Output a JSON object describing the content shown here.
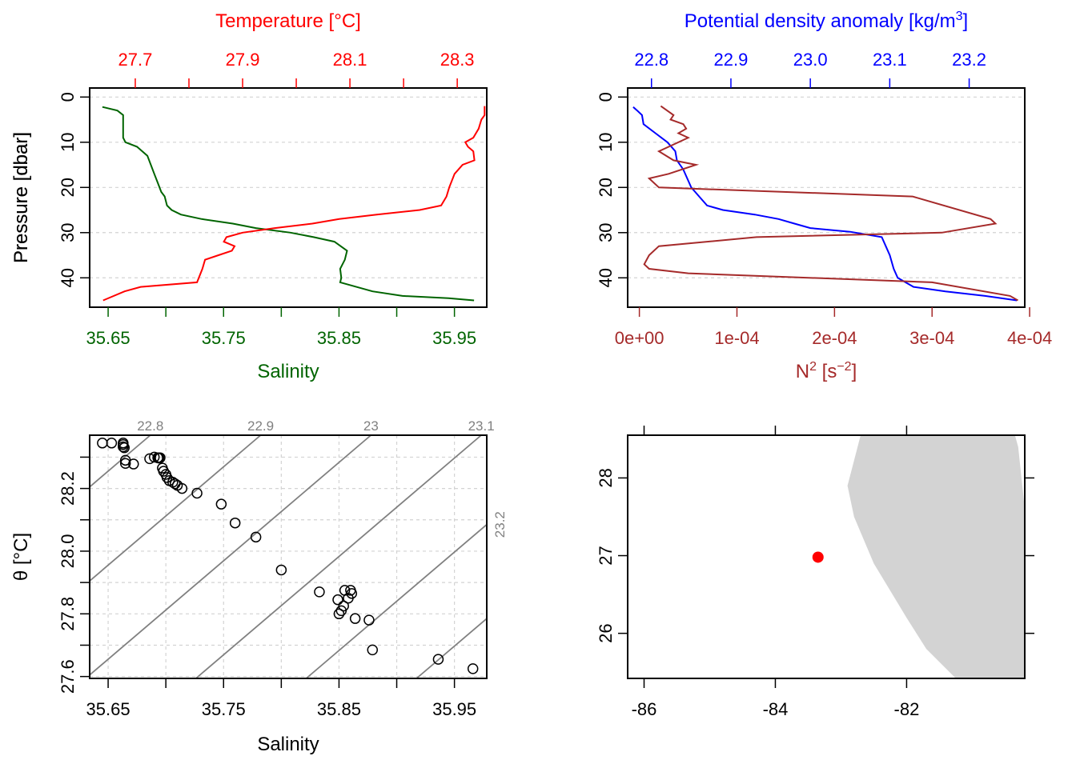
{
  "chart_data": [
    {
      "type": "line",
      "panel": "salinity-temperature-profile",
      "top_axis": {
        "label": "Temperature [°C]",
        "ticks": [
          27.7,
          27.8,
          27.9,
          28.0,
          28.1,
          28.2,
          28.3
        ],
        "tick_labels": [
          "27.7",
          "",
          "27.9",
          "",
          "28.1",
          "",
          "28.3"
        ],
        "lim": [
          27.615,
          28.355
        ],
        "color": "#ff0000"
      },
      "bottom_axis": {
        "label": "Salinity",
        "ticks": [
          35.65,
          35.7,
          35.75,
          35.8,
          35.85,
          35.9,
          35.95
        ],
        "tick_labels": [
          "35.65",
          "",
          "35.75",
          "",
          "35.85",
          "",
          "35.95"
        ],
        "lim": [
          35.634,
          35.978
        ],
        "color": "#006400"
      },
      "y_axis": {
        "label": "Pressure [dbar]",
        "ticks": [
          0,
          10,
          20,
          30,
          40
        ],
        "tick_labels": [
          "0",
          "10",
          "20",
          "30",
          "40"
        ],
        "lim": [
          -2,
          46.5
        ],
        "reversed": true
      },
      "grid": true,
      "series": [
        {
          "name": "Salinity",
          "axis": "bottom",
          "color": "#006400",
          "x": [
            35.645,
            35.658,
            35.663,
            35.663,
            35.663,
            35.665,
            35.675,
            35.684,
            35.687,
            35.69,
            35.693,
            35.696,
            35.699,
            35.701,
            35.705,
            35.713,
            35.731,
            35.758,
            35.778,
            35.808,
            35.828,
            35.846,
            35.857,
            35.855,
            35.851,
            35.852,
            35.851,
            35.865,
            35.879,
            35.905,
            35.945,
            35.967
          ],
          "y": [
            2.2,
            3,
            4,
            6,
            9,
            10,
            11,
            13,
            15,
            17,
            19,
            21,
            22,
            24,
            25,
            26,
            27,
            28,
            29,
            30,
            31,
            32,
            34,
            36,
            38,
            40,
            41,
            42,
            43,
            44,
            44.5,
            45
          ]
        },
        {
          "name": "Temperature",
          "axis": "top",
          "color": "#ff0000",
          "x": [
            28.351,
            28.351,
            28.345,
            28.34,
            28.33,
            28.315,
            28.32,
            28.33,
            28.332,
            28.31,
            28.295,
            28.285,
            28.28,
            28.27,
            28.23,
            28.15,
            28.08,
            28.03,
            27.96,
            27.9,
            27.87,
            27.865,
            27.885,
            27.88,
            27.855,
            27.83,
            27.825,
            27.815,
            27.71,
            27.68,
            27.64
          ],
          "y": [
            2,
            4,
            5,
            7,
            9,
            10,
            11,
            12,
            14,
            15,
            17,
            20,
            22,
            24,
            25,
            26,
            27,
            28,
            29,
            30,
            31,
            32,
            33,
            34,
            35,
            36,
            38,
            41,
            42,
            43,
            45
          ]
        }
      ]
    },
    {
      "type": "line",
      "panel": "density-n2-profile",
      "top_axis": {
        "label": "Potential density anomaly [kg/m³]",
        "ticks": [
          22.8,
          22.9,
          23.0,
          23.1,
          23.2
        ],
        "tick_labels": [
          "22.8",
          "22.9",
          "23.0",
          "23.1",
          "23.2"
        ],
        "lim": [
          22.77,
          23.27
        ],
        "color": "#0000ff"
      },
      "bottom_axis": {
        "label": "N² [s⁻²]",
        "ticks": [
          0,
          0.0001,
          0.0002,
          0.0003,
          0.0004
        ],
        "tick_labels": [
          "0e+00",
          "1e-04",
          "2e-04",
          "3e-04",
          "4e-04"
        ],
        "lim": [
          -1.2e-05,
          0.000395
        ],
        "color": "#a52a2a"
      },
      "y_axis": {
        "label": "Pressure [dbar]",
        "ticks": [
          0,
          10,
          20,
          30,
          40
        ],
        "tick_labels": [
          "0",
          "10",
          "20",
          "30",
          "40"
        ],
        "lim": [
          -2,
          46.5
        ],
        "reversed": true
      },
      "grid": true,
      "series": [
        {
          "name": "Potential density anomaly",
          "axis": "top",
          "color": "#0000ff",
          "x": [
            22.777,
            22.782,
            22.788,
            22.79,
            22.805,
            22.82,
            22.825,
            22.83,
            22.832,
            22.84,
            22.845,
            22.85,
            22.855,
            22.86,
            22.87,
            22.89,
            22.93,
            22.96,
            22.98,
            23.0,
            23.05,
            23.09,
            23.095,
            23.1,
            23.105,
            23.11,
            23.13,
            23.17,
            23.22,
            23.26
          ],
          "y": [
            2.2,
            3,
            4,
            6,
            8,
            10,
            11,
            12,
            14,
            16,
            18,
            20,
            21,
            22,
            24,
            25,
            26,
            27,
            28,
            29,
            29.8,
            31,
            33,
            35,
            38,
            40,
            42,
            43,
            44,
            45
          ]
        },
        {
          "name": "N²",
          "axis": "bottom",
          "color": "#a52a2a",
          "x": [
            2.2e-05,
            3.5e-05,
            3.2e-05,
            4.5e-05,
            4.8e-05,
            4e-05,
            5e-05,
            2e-05,
            3.5e-05,
            5.8e-05,
            3e-05,
            1e-05,
            2e-05,
            0.00028,
            0.00036,
            0.000365,
            0.00031,
            0.00012,
            2e-05,
            1e-05,
            5e-06,
            1e-05,
            5e-05,
            0.0003,
            0.00038,
            0.000388
          ],
          "y": [
            2,
            4,
            5,
            6,
            7,
            8,
            9,
            12,
            14,
            15,
            17,
            18,
            20,
            22,
            27,
            28,
            30,
            31,
            33,
            35,
            37,
            38,
            39,
            41,
            44,
            45
          ]
        }
      ]
    },
    {
      "type": "scatter",
      "panel": "ts-diagram",
      "x_axis": {
        "label": "Salinity",
        "ticks": [
          35.65,
          35.7,
          35.75,
          35.8,
          35.85,
          35.9,
          35.95
        ],
        "tick_labels": [
          "35.65",
          "",
          "35.75",
          "",
          "35.85",
          "",
          "35.95"
        ],
        "lim": [
          35.634,
          35.978
        ]
      },
      "y_axis": {
        "label": "θ [°C]",
        "ticks": [
          27.6,
          27.8,
          28.0,
          28.2
        ],
        "minor_ticks": [
          27.7,
          27.9,
          28.1,
          28.3
        ],
        "tick_labels": [
          "27.6",
          "27.8",
          "28.0",
          "28.2"
        ],
        "lim": [
          27.594,
          28.37
        ]
      },
      "grid": true,
      "isopycnals": [
        {
          "label": "22.8",
          "y_at_xmin": 28.205,
          "y_at_xmax": 29.285
        },
        {
          "label": "22.9",
          "y_at_xmin": 27.905,
          "y_at_xmax": 28.985
        },
        {
          "label": "23",
          "y_at_xmin": 27.605,
          "y_at_xmax": 28.685
        },
        {
          "label": "23.1",
          "y_at_xmin": 27.305,
          "y_at_xmax": 28.385
        },
        {
          "label": "23.2",
          "y_at_xmin": 27.005,
          "y_at_xmax": 28.085
        },
        {
          "label": "",
          "y_at_xmin": 26.705,
          "y_at_xmax": 27.785
        }
      ],
      "x": [
        35.645,
        35.653,
        35.663,
        35.663,
        35.663,
        35.664,
        35.665,
        35.665,
        35.672,
        35.686,
        35.69,
        35.693,
        35.694,
        35.695,
        35.697,
        35.698,
        35.7,
        35.701,
        35.703,
        35.706,
        35.708,
        35.71,
        35.714,
        35.727,
        35.748,
        35.76,
        35.778,
        35.8,
        35.833,
        35.849,
        35.85,
        35.852,
        35.854,
        35.855,
        35.858,
        35.86,
        35.861,
        35.864,
        35.876,
        35.879,
        35.936,
        35.966
      ],
      "y": [
        28.345,
        28.345,
        28.345,
        28.34,
        28.333,
        28.33,
        28.29,
        28.28,
        28.278,
        28.295,
        28.3,
        28.298,
        28.297,
        28.298,
        28.265,
        28.255,
        28.245,
        28.235,
        28.225,
        28.22,
        28.215,
        28.21,
        28.2,
        28.185,
        28.15,
        28.09,
        28.045,
        27.94,
        27.87,
        27.845,
        27.8,
        27.81,
        27.825,
        27.875,
        27.85,
        27.875,
        27.865,
        27.785,
        27.78,
        27.685,
        27.655,
        27.625
      ]
    },
    {
      "type": "scatter",
      "panel": "station-map",
      "x_axis": {
        "ticks": [
          -86,
          -84,
          -82
        ],
        "tick_labels": [
          "-86",
          "-84",
          "-82"
        ],
        "lim": [
          -86.25,
          -80.2
        ]
      },
      "y_axis": {
        "ticks": [
          26,
          27,
          28
        ],
        "tick_labels": [
          "26",
          "27",
          "28"
        ],
        "lim": [
          25.42,
          28.55
        ]
      },
      "grid": false,
      "land_color": "#d3d3d3",
      "coastline_lon": [
        -81.9,
        -80.35,
        -80.3,
        -80.25,
        -80.2,
        -80.2,
        -81.25,
        -81.7,
        -82.0,
        -82.5,
        -82.8,
        -82.9,
        -82.7
      ],
      "coastline_lat": [
        28.55,
        28.55,
        28.4,
        28.0,
        27.6,
        25.42,
        25.42,
        25.8,
        26.2,
        26.9,
        27.5,
        27.9,
        28.55
      ],
      "station": {
        "lon": -83.35,
        "lat": 26.98,
        "color": "#ff0000"
      }
    }
  ]
}
